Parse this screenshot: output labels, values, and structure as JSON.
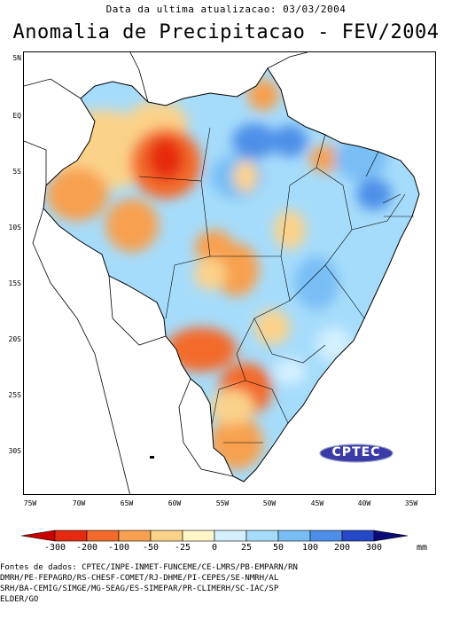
{
  "header": {
    "updated": "Data da ultima atualizacao: 03/03/2004",
    "title": "Anomalia de Precipitacao - FEV/2004"
  },
  "map": {
    "lat_labels": [
      "5N",
      "EQ",
      "5S",
      "10S",
      "15S",
      "20S",
      "25S",
      "30S"
    ],
    "lon_labels": [
      "75W",
      "70W",
      "65W",
      "60W",
      "55W",
      "50W",
      "45W",
      "40W",
      "35W"
    ],
    "logo_text": "CPTEC"
  },
  "legend": {
    "ticks": [
      "-300",
      "-200",
      "-100",
      "-50",
      "-25",
      "0",
      "25",
      "50",
      "100",
      "200",
      "300"
    ],
    "unit": "mm",
    "colors": [
      "#c80000",
      "#e52a10",
      "#f36a2c",
      "#f7a050",
      "#fbd28a",
      "#fff6c8",
      "#d4f0ff",
      "#a6dcfb",
      "#78bef5",
      "#4d8fe8",
      "#2547c8",
      "#0a0a78"
    ]
  },
  "sources": [
    "Fontes de dados: CPTEC/INPE-INMET-FUNCEME/CE-LMRS/PB-EMPARN/RN",
    "DMRH/PE-FEPAGRO/RS-CHESF-COMET/RJ-DHME/PI-CEPES/SE-NMRH/AL",
    "SRH/BA-CEMIG/SIMGE/MG-SEAG/ES-SIMEPAR/PR-CLIMERH/SC-IAC/SP",
    "ELDER/GO"
  ]
}
